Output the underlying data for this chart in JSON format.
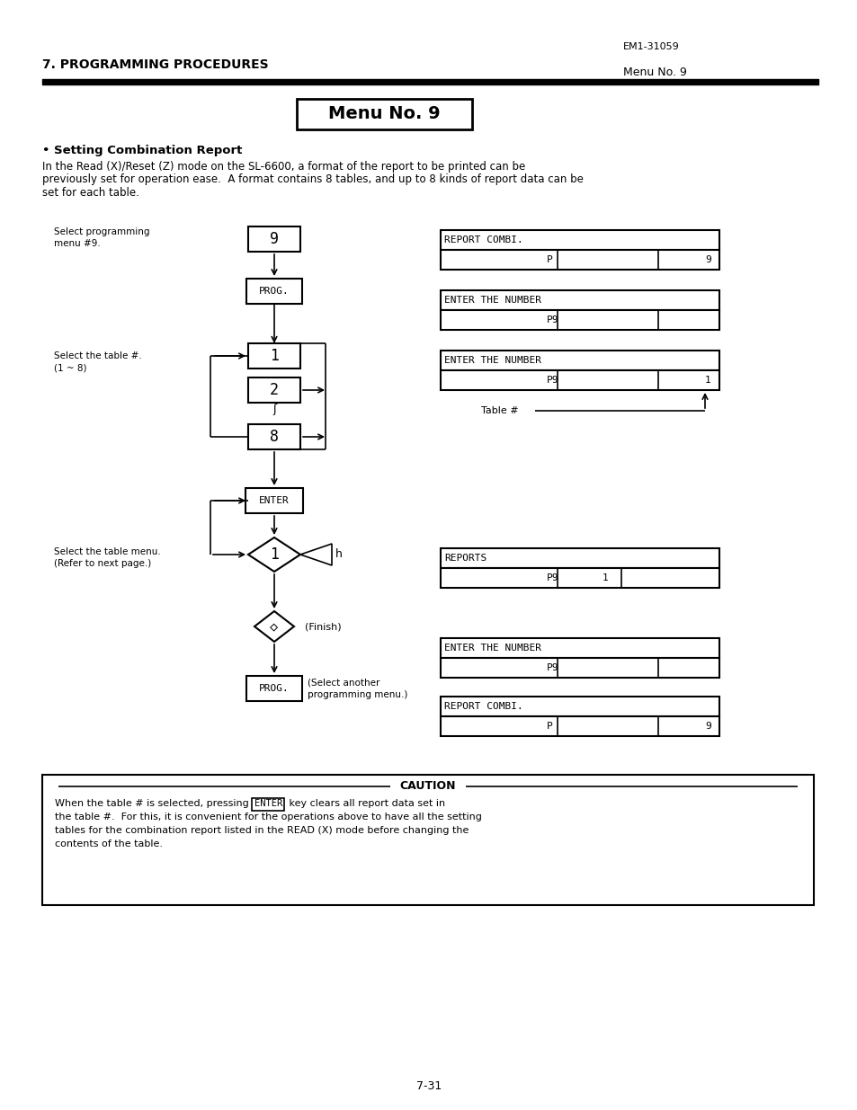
{
  "title": "Menu No. 9",
  "header_left": "7. PROGRAMMING PROCEDURES",
  "header_right_top": "EM1-31059",
  "header_right_bottom": "Menu No. 9",
  "section_title": "Setting Combination Report",
  "body_line1": "In the Read (X)/Reset (Z) mode on the SL-6600, a format of the report to be printed can be",
  "body_line2": "previously set for operation ease.  A format contains 8 tables, and up to 8 kinds of report data can be",
  "body_line3": "set for each table.",
  "label_select_prog_1": "Select programming",
  "label_select_prog_2": "menu #9.",
  "label_select_table_1": "Select the table #.",
  "label_select_table_2": "(1 ~ 8)",
  "label_select_menu_1": "Select the table menu.",
  "label_select_menu_2": "(Refer to next page.)",
  "label_finish": "(Finish)",
  "label_select_another_1": "(Select another",
  "label_select_another_2": "programming menu.)",
  "label_table_hash": "Table #",
  "label_h": "h",
  "display_1_top": "REPORT COMBI.",
  "display_1_bot_left": "P",
  "display_1_bot_right": "9",
  "display_2_top": "ENTER THE NUMBER",
  "display_2_bot": "P9",
  "display_3_top": "ENTER THE NUMBER",
  "display_3_bot_left": "P9",
  "display_3_bot_right": "1",
  "display_4_top": "REPORTS",
  "display_4_bot_left": "P9",
  "display_4_bot_mid": "1",
  "display_5_top": "ENTER THE NUMBER",
  "display_5_bot": "P9",
  "display_6_top": "REPORT COMBI.",
  "display_6_bot_left": "P",
  "display_6_bot_right": "9",
  "caution_line1_pre": "When the table # is selected, pressing the ",
  "caution_line1_box": "ENTER",
  "caution_line1_post": " key clears all report data set in",
  "caution_line2": "the table #.  For this, it is convenient for the operations above to have all the setting",
  "caution_line3": "tables for the combination report listed in the READ (X) mode before changing the",
  "caution_line4": "contents of the table.",
  "caution_title": "CAUTION",
  "page_number": "7-31",
  "bg_color": "#ffffff"
}
